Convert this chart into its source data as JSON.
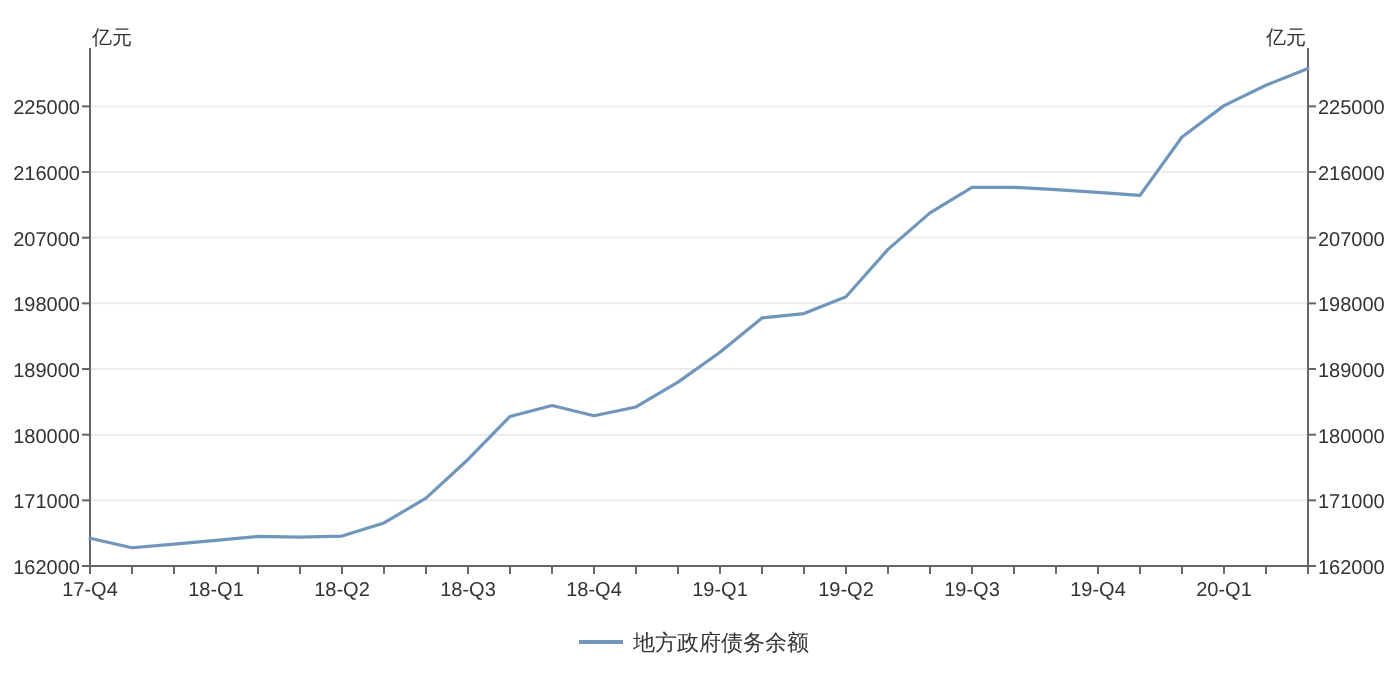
{
  "chart_data": {
    "type": "line",
    "ylabel": "亿元",
    "y2label": "亿元",
    "categories": [
      "17-Q4",
      null,
      null,
      "18-Q1",
      null,
      null,
      "18-Q2",
      null,
      null,
      "18-Q3",
      null,
      null,
      "18-Q4",
      null,
      null,
      "19-Q1",
      null,
      null,
      "19-Q2",
      null,
      null,
      "19-Q3",
      null,
      null,
      "19-Q4",
      null,
      null,
      "20-Q1",
      null,
      null
    ],
    "series": [
      {
        "name": "地方政府债务余额",
        "color": "#7096bb",
        "values": [
          165800,
          164500,
          165000,
          165500,
          166050,
          165950,
          166100,
          167900,
          171300,
          176600,
          182500,
          184000,
          182600,
          183800,
          187200,
          191300,
          196000,
          196600,
          198900,
          205400,
          210400,
          213900,
          213900,
          213600,
          213200,
          212800,
          220800,
          225100,
          227900,
          230200
        ]
      }
    ],
    "ylim": [
      162000,
      233000
    ],
    "yticks": [
      162000,
      171000,
      180000,
      189000,
      198000,
      207000,
      216000,
      225000
    ],
    "y2lim": [
      162000,
      233000
    ],
    "y2ticks": [
      162000,
      171000,
      180000,
      189000,
      198000,
      207000,
      216000,
      225000
    ],
    "grid": "y",
    "legend": "bottom",
    "marker": "none",
    "line_style": "solid"
  }
}
